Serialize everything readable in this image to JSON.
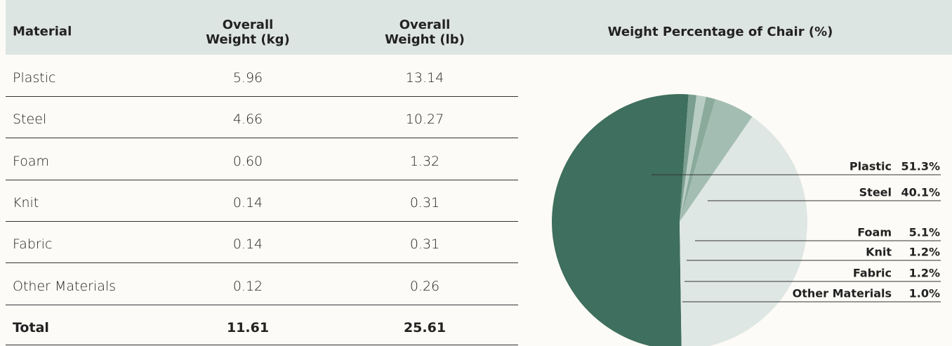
{
  "table": {
    "headers": [
      "Material",
      "Overall Weight (kg)",
      "Overall Weight (lb)"
    ],
    "rows": [
      [
        "Plastic",
        "5.96",
        "13.14"
      ],
      [
        "Steel",
        "4.66",
        "10.27"
      ],
      [
        "Foam",
        "0.60",
        "1.32"
      ],
      [
        "Knit",
        "0.14",
        "0.31"
      ],
      [
        "Fabric",
        "0.14",
        "0.31"
      ],
      [
        "Other Materials",
        "0.12",
        "0.26"
      ]
    ],
    "total": [
      "Total",
      "11.61",
      "25.61"
    ]
  },
  "chart_data": {
    "type": "pie",
    "title": "Weight Percentage of Chair (%)",
    "categories": [
      "Plastic",
      "Steel",
      "Foam",
      "Knit",
      "Fabric",
      "Other Materials"
    ],
    "values": [
      51.3,
      40.1,
      5.1,
      1.2,
      1.2,
      1.0
    ],
    "value_labels": [
      "51.3%",
      "40.1%",
      "5.1%",
      "1.2%",
      "1.2%",
      "1.0%"
    ],
    "colors": [
      "#3f6f5e",
      "#dfe7e4",
      "#a3bdb3",
      "#8aaa9c",
      "#b9cdc5",
      "#7a9e8f"
    ]
  }
}
